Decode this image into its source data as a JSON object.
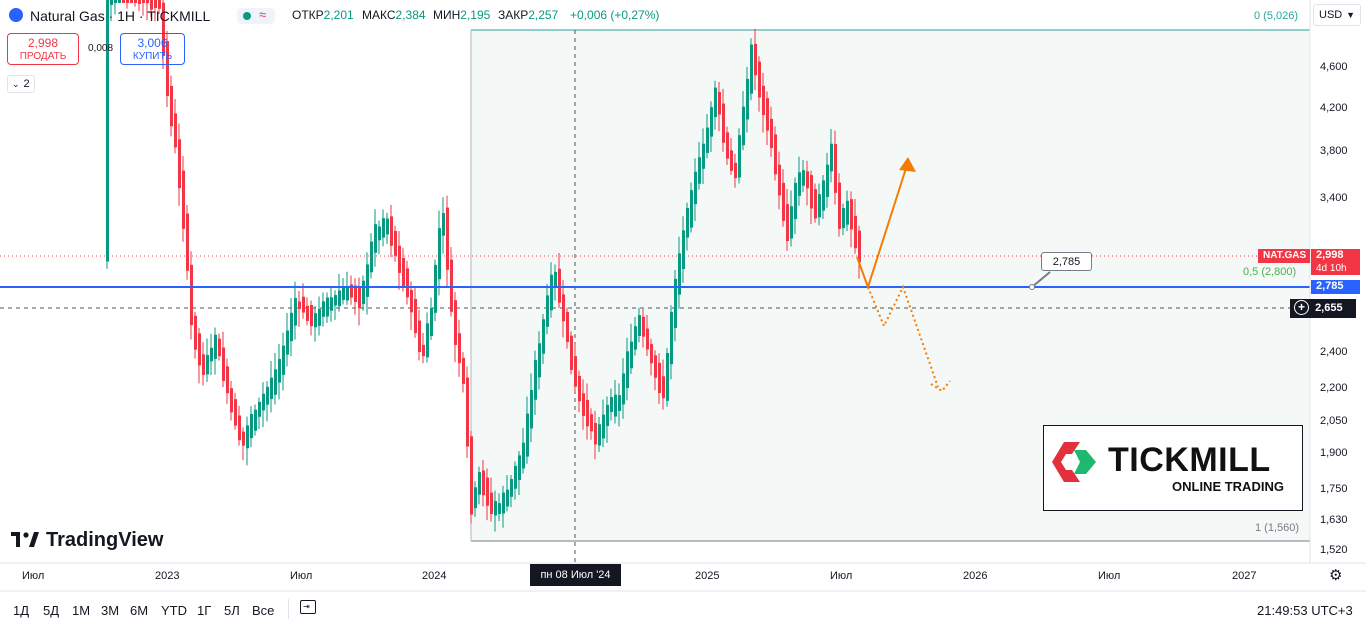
{
  "header": {
    "symbol_title": "Natural Gas · 1H · TICKMILL",
    "ohlc": [
      {
        "label": "ОТКР",
        "value": "2,201"
      },
      {
        "label": "МАКС",
        "value": "2,384"
      },
      {
        "label": "МИН",
        "value": "2,195"
      },
      {
        "label": "ЗАКР",
        "value": "2,257"
      }
    ],
    "change": "+0,006 (+0,27%)",
    "currency": "USD"
  },
  "trade": {
    "sell_price": "2,998",
    "sell_label": "ПРОДАТЬ",
    "spread": "0,008",
    "buy_price": "3,006",
    "buy_label": "КУПИТЬ"
  },
  "indicator_toggle": "2",
  "fib": {
    "level_0": "0 (5,026)",
    "level_05": "0,5 (2,800)",
    "level_1": "1 (1,560)"
  },
  "price_tags": {
    "symbol": "NAT.GAS",
    "last": "2,998",
    "countdown": "4d 10h",
    "hline": "2,785",
    "cursor": "2,655"
  },
  "annotation_label": "2,785",
  "price_axis_labels": [
    "4,600",
    "4,200",
    "3,800",
    "3,400",
    "2,400",
    "2,200",
    "2,050",
    "1,900",
    "1,750",
    "1,630",
    "1,520"
  ],
  "time_axis_labels": [
    "Июл",
    "2023",
    "Июл",
    "2024",
    "2025",
    "Июл",
    "2026",
    "Июл",
    "2027"
  ],
  "crosshair_time": "пн 08 Июл '24",
  "brand": "TradingView",
  "logo": {
    "name": "TICKMILL",
    "tagline": "ONLINE TRADING"
  },
  "timeframes": [
    "1Д",
    "5Д",
    "1М",
    "3М",
    "6М",
    "YTD",
    "1Г",
    "5Л",
    "Все"
  ],
  "clock": "21:49:53 UTC+3",
  "colors": {
    "up": "#089981",
    "down": "#f23645",
    "line": "#2962ff",
    "projection": "#f57c00",
    "fib_line": "#26a69a"
  },
  "icons": [
    "gas-drop-icon",
    "indicator-toggle-icon",
    "calendar-range-icon",
    "axis-settings-icon",
    "crosshair-plus-icon",
    "tradingview-logo-icon",
    "tickmill-logo-icon"
  ]
}
